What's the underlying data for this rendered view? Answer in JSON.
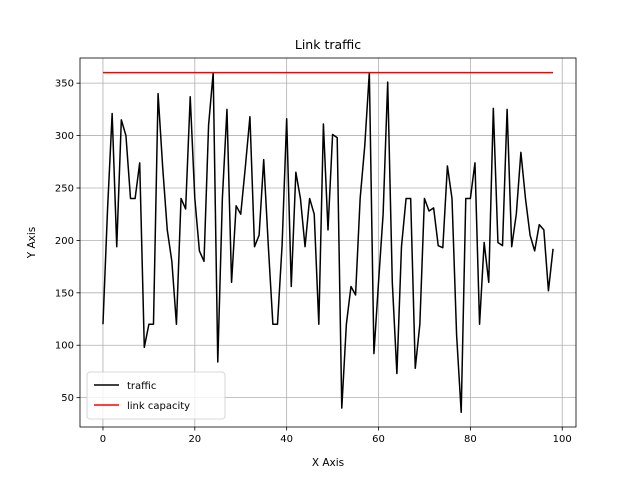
{
  "chart_data": {
    "type": "line",
    "title": "Link traffic",
    "xlabel": "X Axis",
    "ylabel": "Y Axis",
    "xlim": [
      -5,
      103
    ],
    "ylim": [
      22,
      374
    ],
    "xticks": [
      0,
      20,
      40,
      60,
      80,
      100
    ],
    "yticks": [
      50,
      100,
      150,
      200,
      250,
      300,
      350
    ],
    "grid": true,
    "legend_position": "lower-left",
    "series": [
      {
        "name": "traffic",
        "color": "#000000",
        "x": [
          0,
          1,
          2,
          3,
          4,
          5,
          6,
          7,
          8,
          9,
          10,
          11,
          12,
          13,
          14,
          15,
          16,
          17,
          18,
          19,
          20,
          21,
          22,
          23,
          24,
          25,
          26,
          27,
          28,
          29,
          30,
          31,
          32,
          33,
          34,
          35,
          36,
          37,
          38,
          39,
          40,
          41,
          42,
          43,
          44,
          45,
          46,
          47,
          48,
          49,
          50,
          51,
          52,
          53,
          54,
          55,
          56,
          57,
          58,
          59,
          60,
          61,
          62,
          63,
          64,
          65,
          66,
          67,
          68,
          69,
          70,
          71,
          72,
          73,
          74,
          75,
          76,
          77,
          78,
          79,
          80,
          81,
          82,
          83,
          84,
          85,
          86,
          87,
          88,
          89,
          90,
          91,
          92,
          93,
          94,
          95,
          96,
          97,
          98
        ],
        "y": [
          120,
          230,
          321,
          194,
          315,
          300,
          240,
          240,
          274,
          98,
          120,
          120,
          340,
          270,
          210,
          180,
          120,
          240,
          230,
          337,
          240,
          190,
          180,
          310,
          360,
          84,
          240,
          325,
          160,
          233,
          225,
          270,
          318,
          194,
          205,
          277,
          195,
          120,
          120,
          195,
          316,
          156,
          265,
          240,
          194,
          240,
          225,
          120,
          311,
          210,
          301,
          298,
          40,
          120,
          156,
          148,
          240,
          290,
          360,
          92,
          160,
          225,
          351,
          160,
          73,
          194,
          240,
          240,
          78,
          120,
          240,
          228,
          231,
          195,
          193,
          271,
          240,
          110,
          36,
          240,
          240,
          274,
          120,
          198,
          160,
          326,
          198,
          195,
          325,
          194,
          225,
          284,
          240,
          205,
          190,
          215,
          210,
          152,
          192
        ]
      },
      {
        "name": "link capacity",
        "color": "#ff0000",
        "x": [
          0,
          98
        ],
        "y": [
          360,
          360
        ]
      }
    ]
  }
}
